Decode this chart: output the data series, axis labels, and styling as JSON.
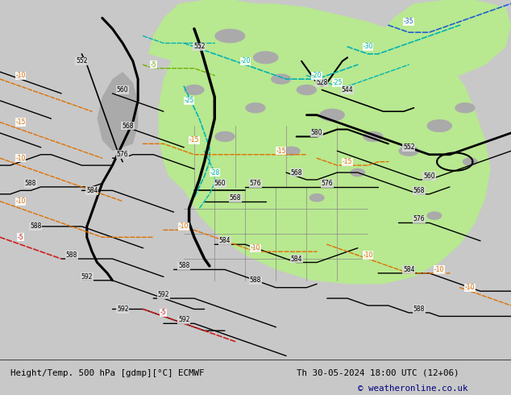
{
  "title_left": "Height/Temp. 500 hPa [gdmp][°C] ECMWF",
  "title_right": "Th 30-05-2024 18:00 UTC (12+06)",
  "copyright": "© weatheronline.co.uk",
  "bg_color": "#c8c8c8",
  "map_bg": "#dcdcdc",
  "green_fill": "#b8e890",
  "bottom_bg": "#e8e8e8",
  "font_color_black": "#000000",
  "copyright_color": "#000080"
}
